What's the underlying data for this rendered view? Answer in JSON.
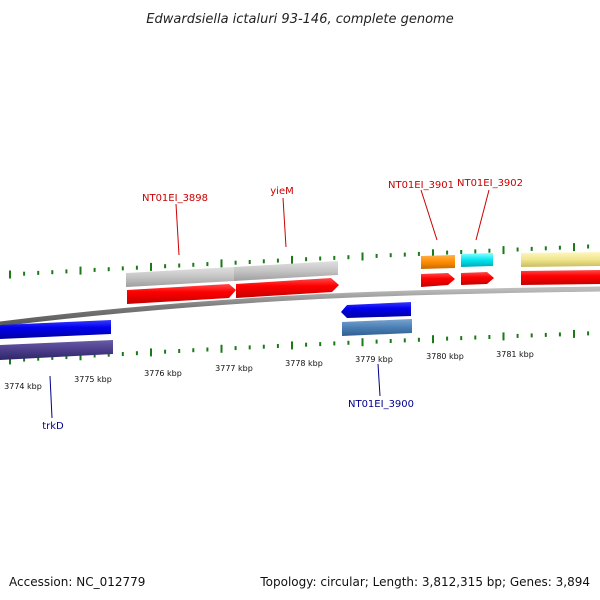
{
  "title": "Edwardsiella ictaluri 93-146, complete genome",
  "footer": {
    "accession": "Accession: NC_012779",
    "topology": "Topology: circular; Length: 3,812,315 bp; Genes: 3,894"
  },
  "colors": {
    "backbone": "#8a8a8a",
    "tick": "#1a7a1a",
    "forward_label": "#cc0000",
    "reverse_label": "#00008b"
  },
  "scale": {
    "unit": "kbp",
    "labels": [
      "3774 kbp",
      "3775 kbp",
      "3776 kbp",
      "3777 kbp",
      "3778 kbp",
      "3779 kbp",
      "3780 kbp",
      "3781 kbp"
    ]
  },
  "genes": [
    {
      "id": "trkD",
      "label": "trkD",
      "strand": "reverse"
    },
    {
      "id": "NT01EI_3898",
      "label": "NT01EI_3898",
      "strand": "forward"
    },
    {
      "id": "yieM",
      "label": "yieM",
      "strand": "forward"
    },
    {
      "id": "NT01EI_3900",
      "label": "NT01EI_3900",
      "strand": "reverse"
    },
    {
      "id": "NT01EI_3901",
      "label": "NT01EI_3901",
      "strand": "forward"
    },
    {
      "id": "NT01EI_3902",
      "label": "NT01EI_3902",
      "strand": "forward"
    }
  ]
}
